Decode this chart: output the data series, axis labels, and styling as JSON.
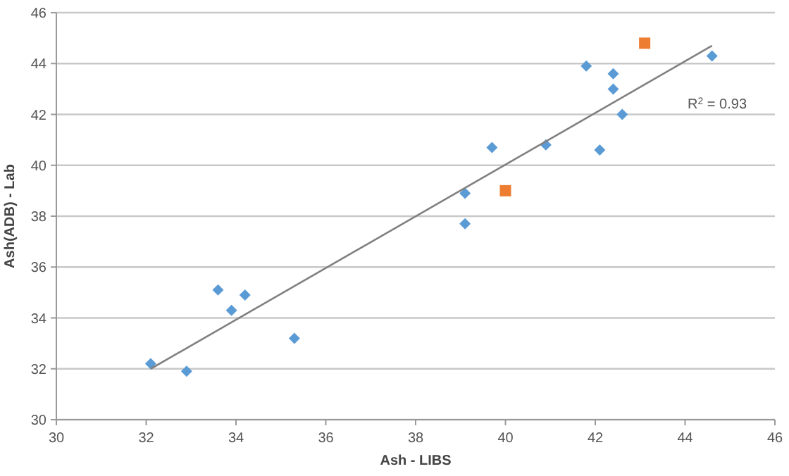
{
  "chart_data": {
    "type": "scatter",
    "xlabel": "Ash - LIBS",
    "ylabel": "Ash(ADB) - Lab",
    "xlim": [
      30,
      46
    ],
    "xticks": [
      30,
      32,
      34,
      36,
      38,
      40,
      42,
      44,
      46
    ],
    "ylim": [
      30,
      46
    ],
    "yticks": [
      30,
      32,
      34,
      36,
      38,
      40,
      42,
      44,
      46
    ],
    "grid": "y",
    "series": [
      {
        "color": "#5b9bd5",
        "marker": "diamond",
        "x": [
          32.1,
          32.9,
          33.6,
          33.9,
          34.2,
          35.3,
          39.1,
          39.1,
          39.7,
          40.9,
          41.8,
          42.4,
          42.4,
          42.6,
          42.1,
          44.6
        ],
        "values": [
          32.2,
          31.9,
          35.1,
          34.3,
          34.9,
          33.2,
          38.9,
          37.7,
          40.7,
          40.8,
          43.9,
          43.6,
          43.0,
          42.0,
          40.6,
          44.3
        ]
      },
      {
        "color": "#ed7d31",
        "marker": "square",
        "x": [
          40.0,
          43.1
        ],
        "values": [
          39.0,
          44.8
        ]
      },
      {
        "type": "line",
        "color": "#808080",
        "marker": "none",
        "x": [
          32.1,
          44.6
        ],
        "values": [
          32.0,
          44.7
        ]
      }
    ],
    "annotations": [
      "R$^{2}$ = 0.93"
    ]
  }
}
